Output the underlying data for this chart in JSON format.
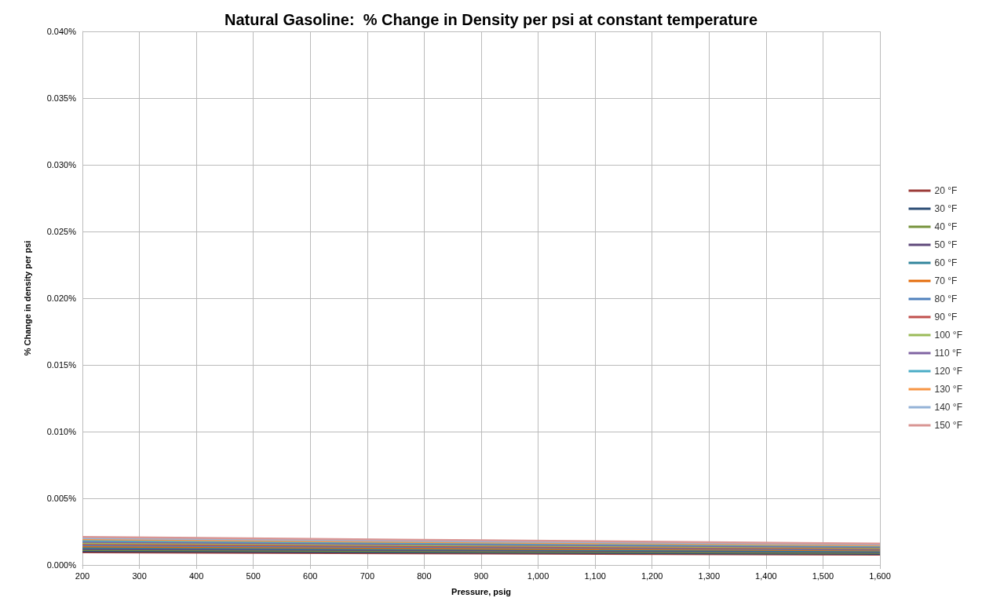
{
  "chart_data": {
    "type": "line",
    "title": "Natural Gasoline:  % Change in Density per psi at constant temperature",
    "xlabel": "Pressure, psig",
    "ylabel": "% Change in density per psi",
    "x": [
      200,
      900,
      1600
    ],
    "series": [
      {
        "name": "20 °F",
        "color": "#9c3b38",
        "values": [
          0.00095,
          0.00087,
          0.00078
        ]
      },
      {
        "name": "30 °F",
        "color": "#2c4d75",
        "values": [
          0.00104,
          0.00094,
          0.00084
        ]
      },
      {
        "name": "40 °F",
        "color": "#77933c",
        "values": [
          0.00113,
          0.00102,
          0.00091
        ]
      },
      {
        "name": "50 °F",
        "color": "#5f497a",
        "values": [
          0.00121,
          0.00109,
          0.00097
        ]
      },
      {
        "name": "60 °F",
        "color": "#31859c",
        "values": [
          0.0013,
          0.00117,
          0.00103
        ]
      },
      {
        "name": "70 °F",
        "color": "#e46c0a",
        "values": [
          0.00139,
          0.00124,
          0.0011
        ]
      },
      {
        "name": "80 °F",
        "color": "#4f81bd",
        "values": [
          0.00148,
          0.00132,
          0.00116
        ]
      },
      {
        "name": "90 °F",
        "color": "#c0504d",
        "values": [
          0.00157,
          0.00139,
          0.00122
        ]
      },
      {
        "name": "100 °F",
        "color": "#9bbb59",
        "values": [
          0.00165,
          0.00147,
          0.00128
        ]
      },
      {
        "name": "110 °F",
        "color": "#8064a2",
        "values": [
          0.00174,
          0.00154,
          0.00135
        ]
      },
      {
        "name": "120 °F",
        "color": "#4bacc6",
        "values": [
          0.00183,
          0.00162,
          0.00141
        ]
      },
      {
        "name": "130 °F",
        "color": "#f79646",
        "values": [
          0.00192,
          0.00169,
          0.00147
        ]
      },
      {
        "name": "140 °F",
        "color": "#95b3d7",
        "values": [
          0.00201,
          0.00177,
          0.00154
        ]
      },
      {
        "name": "150 °F",
        "color": "#d99694",
        "values": [
          0.0021,
          0.00185,
          0.0016
        ]
      }
    ],
    "xlim": [
      200,
      1600
    ],
    "xticks": [
      200,
      300,
      400,
      500,
      600,
      700,
      800,
      900,
      {
        "value": 1000,
        "label": "1,000"
      },
      {
        "value": 1100,
        "label": "1,100"
      },
      {
        "value": 1200,
        "label": "1,200"
      },
      {
        "value": 1300,
        "label": "1,300"
      },
      {
        "value": 1400,
        "label": "1,400"
      },
      {
        "value": 1500,
        "label": "1,500"
      },
      {
        "value": 1600,
        "label": "1,600"
      }
    ],
    "ylim": [
      0,
      0.04
    ],
    "yticks": [
      {
        "value": 0,
        "label": "0.000%"
      },
      {
        "value": 0.005,
        "label": "0.005%"
      },
      {
        "value": 0.01,
        "label": "0.010%"
      },
      {
        "value": 0.015,
        "label": "0.015%"
      },
      {
        "value": 0.02,
        "label": "0.020%"
      },
      {
        "value": 0.025,
        "label": "0.025%"
      },
      {
        "value": 0.03,
        "label": "0.030%"
      },
      {
        "value": 0.035,
        "label": "0.035%"
      },
      {
        "value": 0.04,
        "label": "0.040%"
      }
    ],
    "grid": true,
    "legend": "right",
    "marker": "none",
    "line_style": "solid"
  }
}
